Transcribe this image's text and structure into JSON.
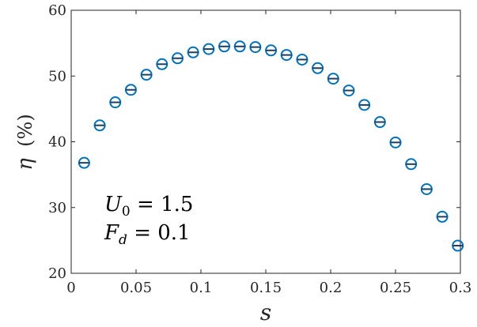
{
  "chart_data": {
    "type": "scatter",
    "xlabel": "s",
    "ylabel_symbol": "η",
    "ylabel_unit": "(%)",
    "xlim": [
      0,
      0.3
    ],
    "ylim": [
      20,
      60
    ],
    "x_ticks": [
      0,
      0.05,
      0.1,
      0.15,
      0.2,
      0.25,
      0.3
    ],
    "x_tick_labels": [
      "0",
      "0.05",
      "0.1",
      "0.15",
      "0.2",
      "0.25",
      "0.3"
    ],
    "y_ticks": [
      20,
      30,
      40,
      50,
      60
    ],
    "y_tick_labels": [
      "20",
      "30",
      "40",
      "50",
      "60"
    ],
    "grid": false,
    "marker": "circle with horizontal line",
    "series": [
      {
        "color": "#0072BD",
        "x": [
          0.01,
          0.022,
          0.034,
          0.046,
          0.058,
          0.07,
          0.082,
          0.094,
          0.106,
          0.118,
          0.13,
          0.142,
          0.154,
          0.166,
          0.178,
          0.19,
          0.202,
          0.214,
          0.226,
          0.238,
          0.25,
          0.262,
          0.274,
          0.286,
          0.298
        ],
        "y": [
          36.8,
          42.5,
          46.0,
          47.9,
          50.2,
          51.8,
          52.7,
          53.6,
          54.1,
          54.5,
          54.5,
          54.4,
          53.9,
          53.2,
          52.5,
          51.2,
          49.6,
          47.8,
          45.6,
          43.0,
          39.9,
          36.6,
          32.8,
          28.6,
          24.2
        ]
      }
    ],
    "annotations": [
      {
        "main": "U",
        "sub": "0",
        "rest": " = 1.5"
      },
      {
        "main": "F",
        "sub": "d",
        "rest": " = 0.1"
      }
    ]
  }
}
